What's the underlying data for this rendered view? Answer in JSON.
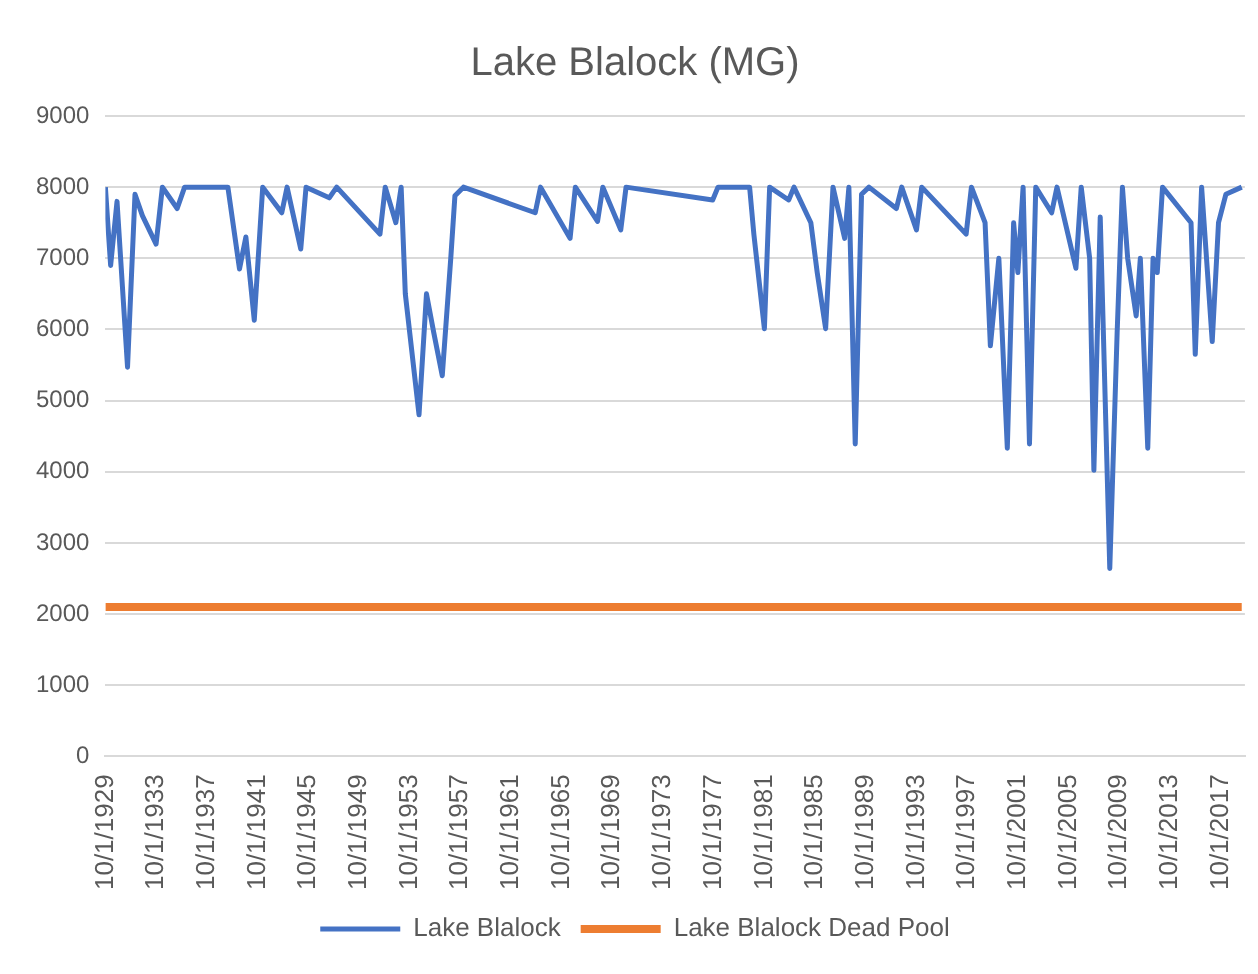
{
  "chart_data": {
    "type": "line",
    "title": "Lake Blalock (MG)",
    "xlim": [
      "1929-10-01",
      "2019-09-01"
    ],
    "xticks": [
      {
        "value": "1929-10-01",
        "label": "10/1/1929"
      },
      {
        "value": "1933-10-01",
        "label": "10/1/1933"
      },
      {
        "value": "1937-10-01",
        "label": "10/1/1937"
      },
      {
        "value": "1941-10-01",
        "label": "10/1/1941"
      },
      {
        "value": "1945-10-01",
        "label": "10/1/1945"
      },
      {
        "value": "1949-10-01",
        "label": "10/1/1949"
      },
      {
        "value": "1953-10-01",
        "label": "10/1/1953"
      },
      {
        "value": "1957-10-01",
        "label": "10/1/1957"
      },
      {
        "value": "1961-10-01",
        "label": "10/1/1961"
      },
      {
        "value": "1965-10-01",
        "label": "10/1/1965"
      },
      {
        "value": "1969-10-01",
        "label": "10/1/1969"
      },
      {
        "value": "1973-10-01",
        "label": "10/1/1973"
      },
      {
        "value": "1977-10-01",
        "label": "10/1/1977"
      },
      {
        "value": "1981-10-01",
        "label": "10/1/1981"
      },
      {
        "value": "1985-10-01",
        "label": "10/1/1985"
      },
      {
        "value": "1989-10-01",
        "label": "10/1/1989"
      },
      {
        "value": "1993-10-01",
        "label": "10/1/1993"
      },
      {
        "value": "1997-10-01",
        "label": "10/1/1997"
      },
      {
        "value": "2001-10-01",
        "label": "10/1/2001"
      },
      {
        "value": "2005-10-01",
        "label": "10/1/2005"
      },
      {
        "value": "2009-10-01",
        "label": "10/1/2009"
      },
      {
        "value": "2013-10-01",
        "label": "10/1/2013"
      },
      {
        "value": "2017-10-01",
        "label": "10/1/2017"
      }
    ],
    "ylim": [
      0,
      9000
    ],
    "yticks": [
      0,
      1000,
      2000,
      3000,
      4000,
      5000,
      6000,
      7000,
      8000,
      9000
    ],
    "grid": "y",
    "legend": "bottom",
    "marker": "none",
    "line_style": "solid",
    "series": [
      {
        "name": "Lake Blalock",
        "color": "#4472c4",
        "x": [
          "1929-10",
          "1930-03",
          "1930-09",
          "1931-07",
          "1932-02",
          "1932-09",
          "1933-10",
          "1934-04",
          "1935-06",
          "1936-01",
          "1939-06",
          "1940-05",
          "1940-11",
          "1941-07",
          "1942-03",
          "1943-09",
          "1944-02",
          "1945-03",
          "1945-08",
          "1947-06",
          "1948-01",
          "1951-06",
          "1951-11",
          "1952-09",
          "1953-02",
          "1953-06",
          "1954-07",
          "1955-02",
          "1955-09",
          "1956-05",
          "1957-01",
          "1957-05",
          "1958-01",
          "1963-09",
          "1964-02",
          "1966-06",
          "1966-11",
          "1968-08",
          "1969-01",
          "1970-06",
          "1970-11",
          "1977-09",
          "1978-02",
          "1980-08",
          "1980-12",
          "1981-10",
          "1982-03",
          "1983-09",
          "1984-02",
          "1985-06",
          "1985-12",
          "1986-08",
          "1987-03",
          "1988-02",
          "1988-06",
          "1988-12",
          "1989-06",
          "1990-01",
          "1992-03",
          "1992-08",
          "1993-10",
          "1994-03",
          "1997-09",
          "1998-02",
          "1999-03",
          "1999-08",
          "2000-04",
          "2000-12",
          "2001-06",
          "2001-10",
          "2002-03",
          "2002-09",
          "2003-03",
          "2004-06",
          "2004-11",
          "2006-05",
          "2006-10",
          "2007-06",
          "2007-10",
          "2008-04",
          "2009-01",
          "2009-08",
          "2010-01",
          "2010-06",
          "2011-02",
          "2011-06",
          "2012-01",
          "2012-06",
          "2012-10",
          "2013-03",
          "2015-06",
          "2015-10",
          "2016-04",
          "2017-02",
          "2017-08",
          "2018-03",
          "2019-06"
        ],
        "values": [
          8000,
          6900,
          7800,
          5470,
          7900,
          7600,
          7200,
          8000,
          7700,
          8000,
          8000,
          6850,
          7300,
          6130,
          8000,
          7640,
          8000,
          7130,
          8000,
          7850,
          8000,
          7340,
          8000,
          7500,
          8000,
          6500,
          4800,
          6500,
          5950,
          5350,
          7000,
          7880,
          8000,
          7640,
          8000,
          7280,
          8000,
          7520,
          8000,
          7400,
          8000,
          7820,
          8000,
          8000,
          7340,
          6010,
          8000,
          7820,
          8000,
          7500,
          6800,
          6010,
          8000,
          7280,
          8000,
          4390,
          7900,
          8000,
          7700,
          8000,
          7400,
          8000,
          7340,
          8000,
          7500,
          5770,
          7000,
          4330,
          7500,
          6800,
          8000,
          4390,
          8000,
          7640,
          8000,
          6860,
          8000,
          7000,
          4020,
          7580,
          2640,
          5950,
          8000,
          7000,
          6190,
          7000,
          4330,
          7000,
          6800,
          8000,
          7500,
          5650,
          8000,
          5830,
          7500,
          7900,
          8000
        ]
      },
      {
        "name": "Lake Blalock Dead Pool",
        "color": "#ed7d31",
        "x": [
          "1929-10",
          "2019-06"
        ],
        "values": [
          2100,
          2100
        ]
      }
    ]
  }
}
